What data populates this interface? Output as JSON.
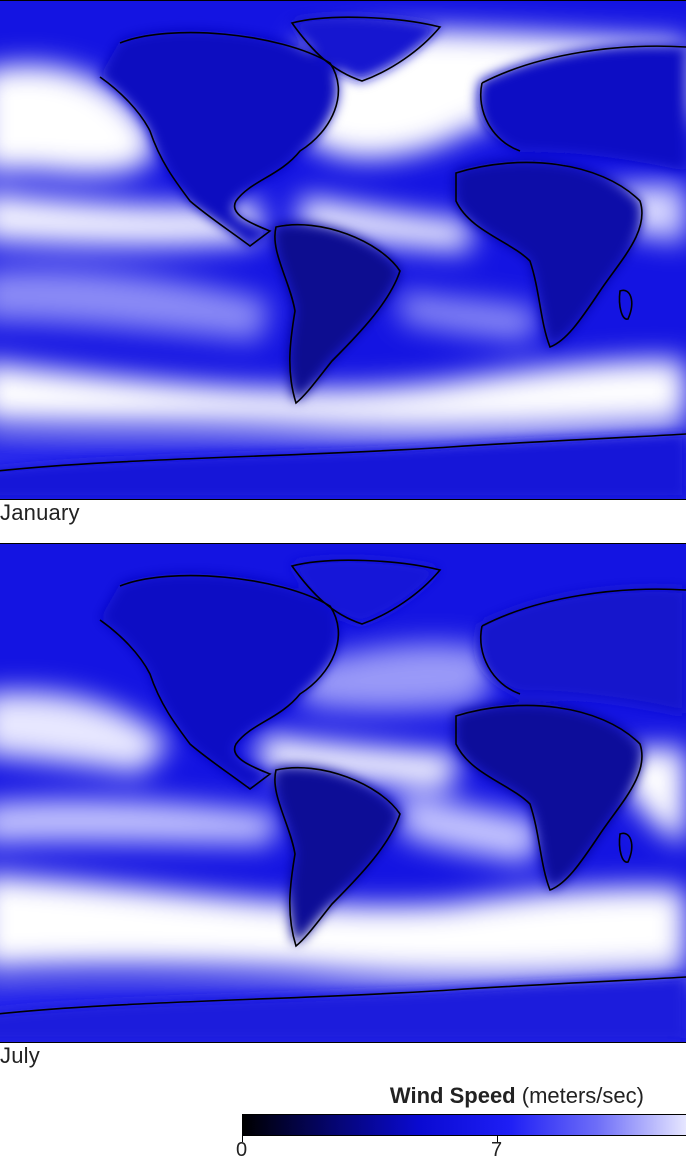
{
  "panels": [
    {
      "id": "jan",
      "label": "January"
    },
    {
      "id": "jul",
      "label": "July"
    }
  ],
  "legend": {
    "title_bold": "Wind Speed",
    "title_unit": "(meters/sec)",
    "min_label": "0",
    "mid_label": "7",
    "colors": [
      "#000000",
      "#05056e",
      "#0a0ad2",
      "#1e1ef5",
      "#6e6ef8",
      "#e6e6ff"
    ]
  },
  "colors": {
    "ocean_high": "#ffffff",
    "ocean_mid": "#6a6af2",
    "ocean_low": "#1616e6",
    "land": "#1010c8",
    "land_dark": "#0a0a90",
    "coast": "#000000"
  }
}
